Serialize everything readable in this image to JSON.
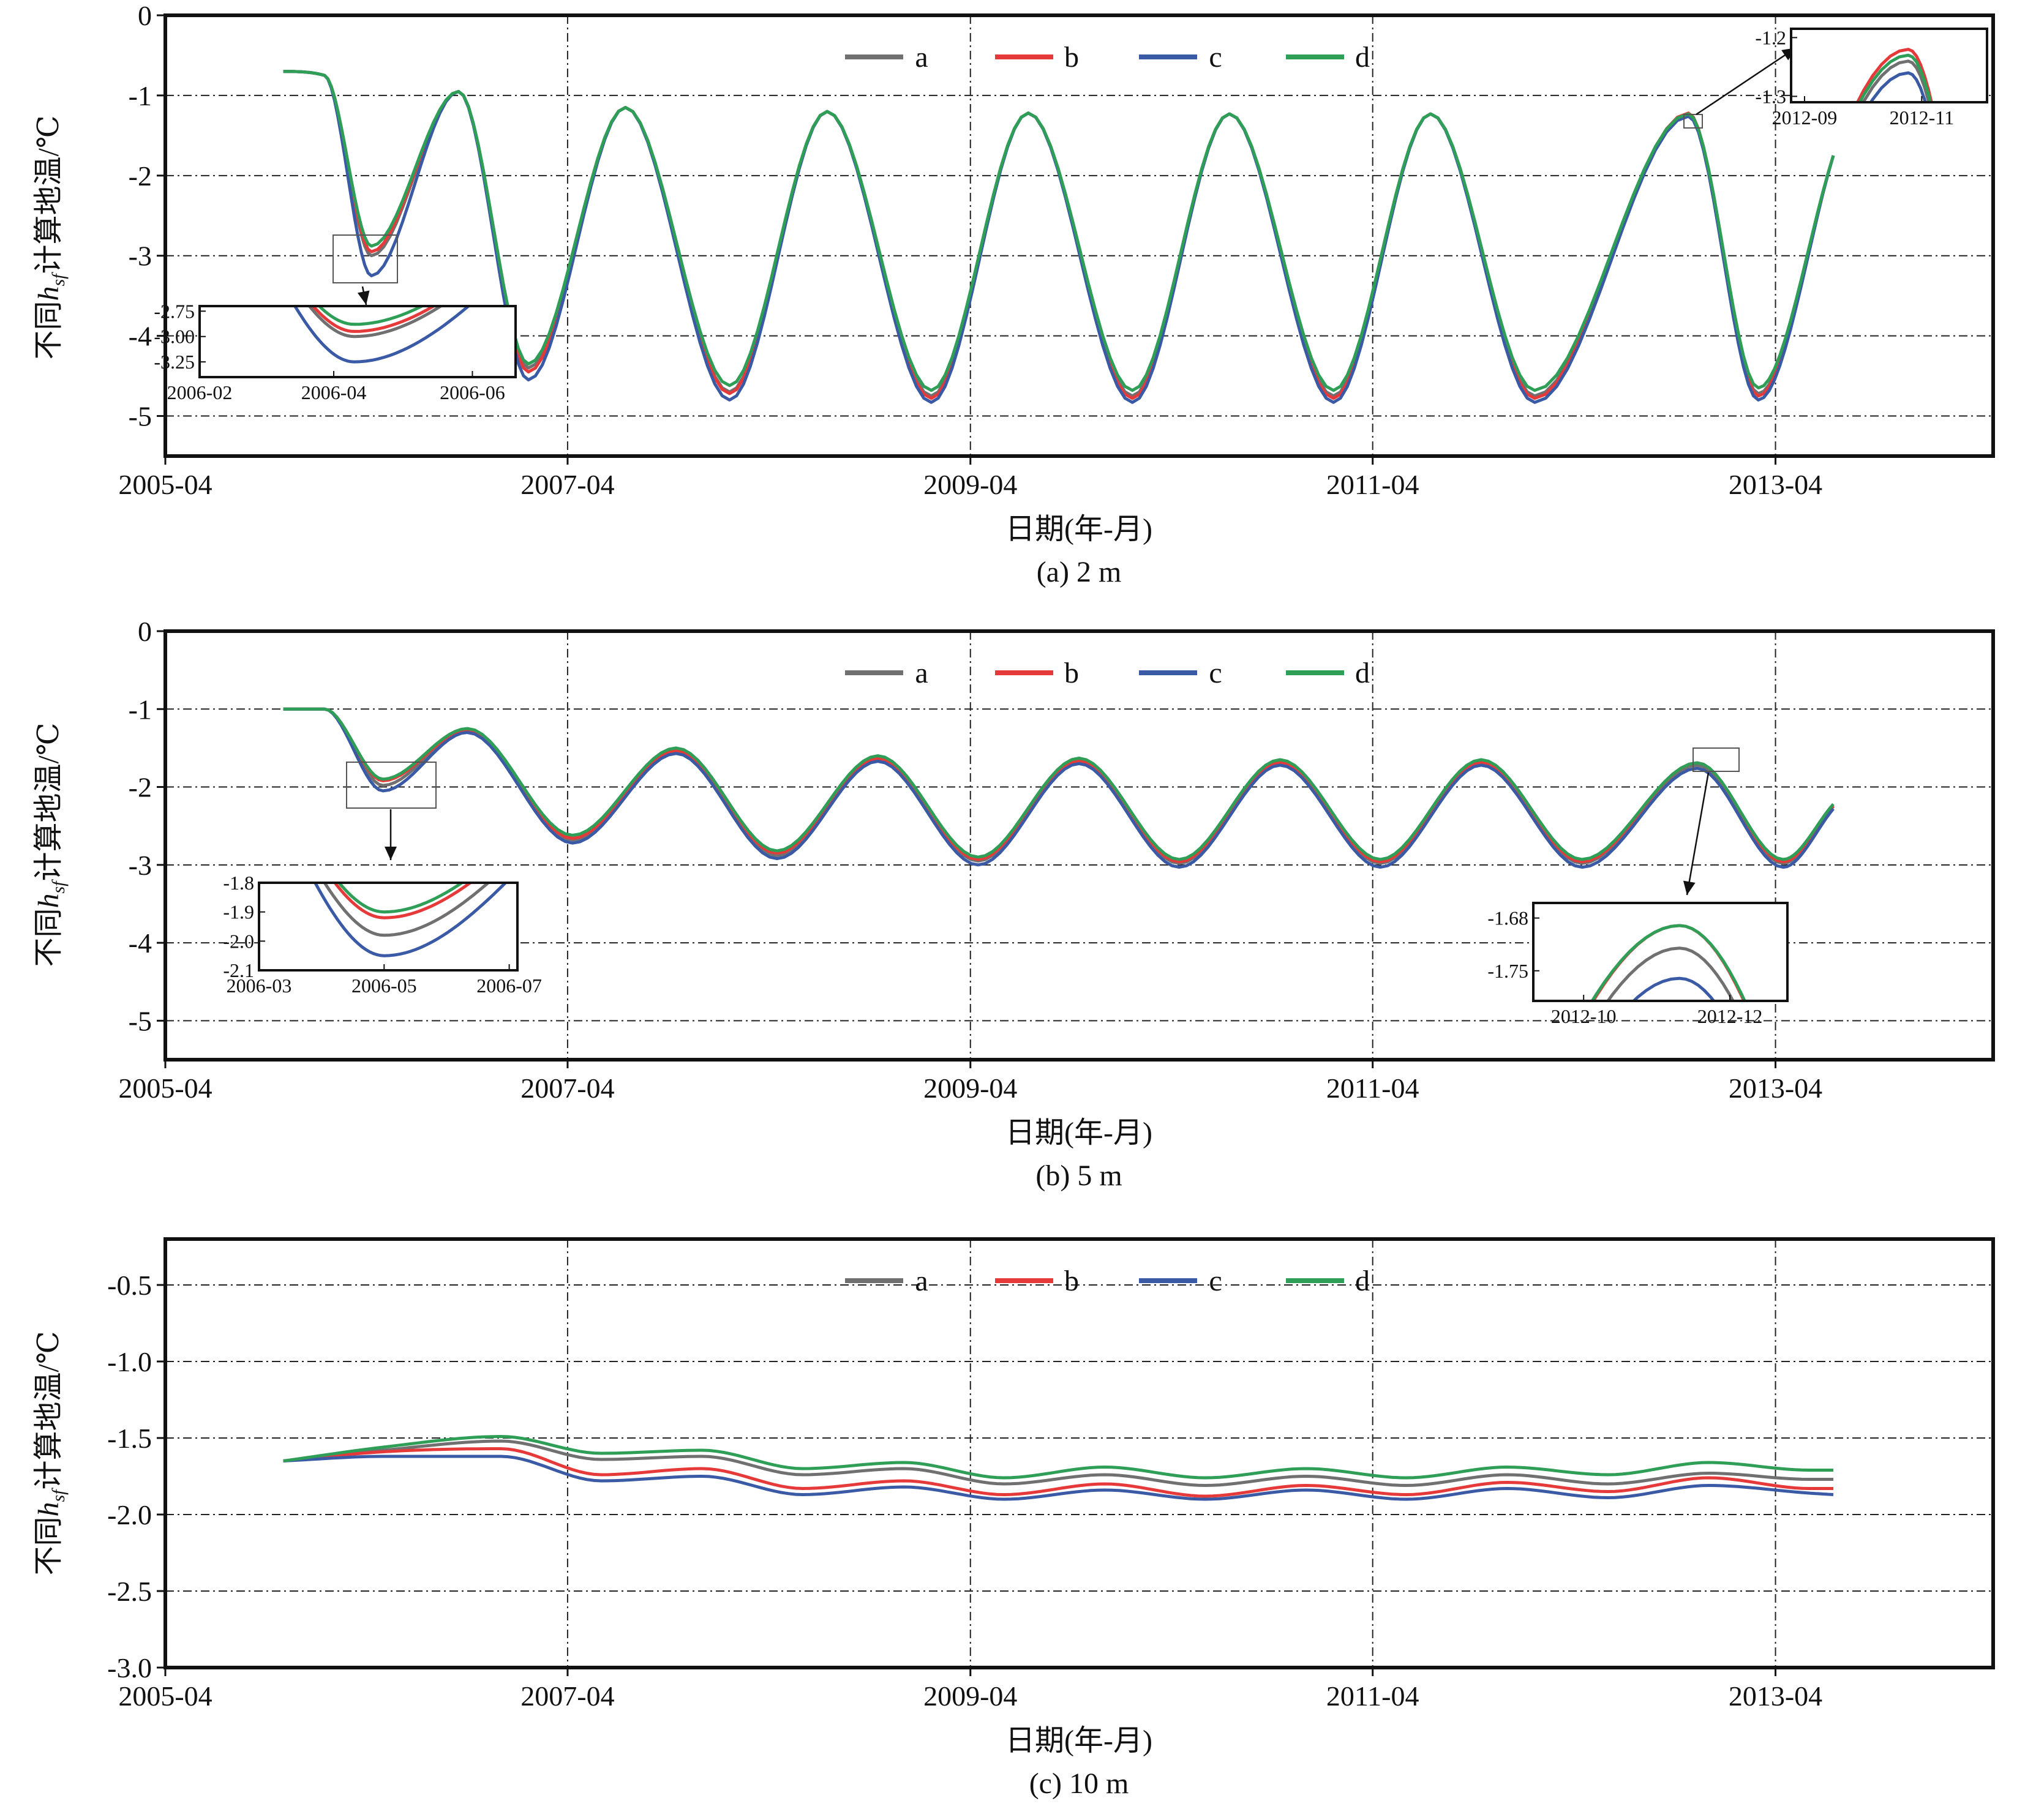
{
  "figure": {
    "legend_order": [
      "a",
      "b",
      "c",
      "d"
    ],
    "colors": {
      "a": "#707070",
      "b": "#e63a3a",
      "c": "#3a5aa6",
      "d": "#2f9e57"
    }
  },
  "chart_data": [
    {
      "type": "line",
      "caption": "(a) 2 m",
      "xlabel": "日期(年-月)",
      "ylabel": "不同hsf计算地温/℃",
      "ylabel_parts": {
        "pre": "不同",
        "h": "h",
        "sub": "sf",
        "post": "计算地温/℃"
      },
      "xlim": [
        "2005-04-01",
        "2014-05-01"
      ],
      "ylim": [
        -5.5,
        0
      ],
      "xticks": [
        "2005-04",
        "2007-04",
        "2009-04",
        "2011-04",
        "2013-04"
      ],
      "yticks": [
        0,
        -1,
        -2,
        -3,
        -4,
        -5
      ],
      "ytick_labels": [
        "0",
        "-1",
        "-2",
        "-3",
        "-4",
        "-5"
      ],
      "grid": true,
      "legend_position": "top-center",
      "series": [
        {
          "name": "a",
          "x": [
            "2005-11-01",
            "2006-01-15",
            "2006-04-10",
            "2006-09-15",
            "2007-01-20",
            "2007-07-15",
            "2008-01-20",
            "2008-07-15",
            "2009-01-20",
            "2009-07-15",
            "2010-01-20",
            "2010-07-15",
            "2011-01-20",
            "2011-07-15",
            "2012-01-20",
            "2012-10-25",
            "2013-03-01",
            "2013-07-15"
          ],
          "y": [
            -0.7,
            -0.75,
            -3.0,
            -0.95,
            -4.4,
            -1.15,
            -4.7,
            -1.2,
            -4.75,
            -1.22,
            -4.75,
            -1.23,
            -4.75,
            -1.23,
            -4.75,
            -1.24,
            -4.72,
            -1.75
          ]
        },
        {
          "name": "b",
          "x": [
            "2005-11-01",
            "2006-01-15",
            "2006-04-10",
            "2006-09-15",
            "2007-01-20",
            "2007-07-15",
            "2008-01-20",
            "2008-07-15",
            "2009-01-20",
            "2009-07-15",
            "2010-01-20",
            "2010-07-15",
            "2011-01-20",
            "2011-07-15",
            "2012-01-20",
            "2012-10-25",
            "2013-03-01",
            "2013-07-15"
          ],
          "y": [
            -0.7,
            -0.75,
            -2.95,
            -0.95,
            -4.45,
            -1.15,
            -4.72,
            -1.2,
            -4.78,
            -1.22,
            -4.78,
            -1.23,
            -4.78,
            -1.23,
            -4.78,
            -1.22,
            -4.75,
            -1.75
          ]
        },
        {
          "name": "c",
          "x": [
            "2005-11-01",
            "2006-01-15",
            "2006-04-10",
            "2006-09-15",
            "2007-01-20",
            "2007-07-15",
            "2008-01-20",
            "2008-07-15",
            "2009-01-20",
            "2009-07-15",
            "2010-01-20",
            "2010-07-15",
            "2011-01-20",
            "2011-07-15",
            "2012-01-20",
            "2012-10-25",
            "2013-03-01",
            "2013-07-15"
          ],
          "y": [
            -0.7,
            -0.75,
            -3.25,
            -0.95,
            -4.55,
            -1.15,
            -4.8,
            -1.2,
            -4.83,
            -1.22,
            -4.83,
            -1.23,
            -4.83,
            -1.23,
            -4.83,
            -1.26,
            -4.8,
            -1.75
          ]
        },
        {
          "name": "d",
          "x": [
            "2005-11-01",
            "2006-01-15",
            "2006-04-10",
            "2006-09-15",
            "2007-01-20",
            "2007-07-15",
            "2008-01-20",
            "2008-07-15",
            "2009-01-20",
            "2009-07-15",
            "2010-01-20",
            "2010-07-15",
            "2011-01-20",
            "2011-07-15",
            "2012-01-20",
            "2012-10-25",
            "2013-03-01",
            "2013-07-15"
          ],
          "y": [
            -0.7,
            -0.75,
            -2.88,
            -0.95,
            -4.35,
            -1.15,
            -4.62,
            -1.2,
            -4.68,
            -1.22,
            -4.68,
            -1.23,
            -4.68,
            -1.23,
            -4.68,
            -1.23,
            -4.65,
            -1.75
          ]
        }
      ],
      "insets": [
        {
          "xlim": [
            "2006-02-01",
            "2006-06-20"
          ],
          "ylim": [
            -3.4,
            -2.7
          ],
          "xticks": [
            "2006-02-01",
            "2006-04-01",
            "2006-06-01"
          ],
          "xtick_labels": [
            "2006-02",
            "2006-04",
            "2006-06"
          ],
          "yticks": [
            -2.75,
            -3.0,
            -3.25
          ],
          "ytick_labels": [
            "-2.75",
            "-3.00",
            "-3.25"
          ]
        },
        {
          "xlim": [
            "2012-08-25",
            "2012-12-05"
          ],
          "ylim": [
            -1.31,
            -1.185
          ],
          "xticks": [
            "2012-09-01",
            "2012-11-01"
          ],
          "xtick_labels": [
            "2012-09",
            "2012-11"
          ],
          "yticks": [
            -1.2,
            -1.3
          ],
          "ytick_labels": [
            "-1.2",
            "-1.3"
          ]
        }
      ]
    },
    {
      "type": "line",
      "caption": "(b) 5 m",
      "xlabel": "日期(年-月)",
      "ylabel": "不同hsf计算地温/℃",
      "ylabel_parts": {
        "pre": "不同",
        "h": "h",
        "sub": "sf",
        "post": "计算地温/℃"
      },
      "xlim": [
        "2005-04-01",
        "2014-05-01"
      ],
      "ylim": [
        -5.5,
        0
      ],
      "xticks": [
        "2005-04",
        "2007-04",
        "2009-04",
        "2011-04",
        "2013-04"
      ],
      "yticks": [
        0,
        -1,
        -2,
        -3,
        -4,
        -5
      ],
      "ytick_labels": [
        "0",
        "-1",
        "-2",
        "-3",
        "-4",
        "-5"
      ],
      "grid": true,
      "legend_position": "top-center",
      "series": [
        {
          "name": "a",
          "x": [
            "2005-11-01",
            "2006-01-15",
            "2006-05-01",
            "2006-10-01",
            "2007-04-10",
            "2007-10-15",
            "2008-04-15",
            "2008-10-15",
            "2009-04-15",
            "2009-10-15",
            "2010-04-15",
            "2010-10-15",
            "2011-04-15",
            "2011-10-15",
            "2012-04-15",
            "2012-11-10",
            "2013-04-15",
            "2013-07-15"
          ],
          "y": [
            -1.0,
            -1.0,
            -1.98,
            -1.28,
            -2.68,
            -1.55,
            -2.88,
            -1.65,
            -2.95,
            -1.68,
            -2.98,
            -1.7,
            -2.98,
            -1.7,
            -2.98,
            -1.72,
            -2.98,
            -2.25
          ]
        },
        {
          "name": "b",
          "x": [
            "2005-11-01",
            "2006-01-15",
            "2006-05-01",
            "2006-10-01",
            "2007-04-10",
            "2007-10-15",
            "2008-04-15",
            "2008-10-15",
            "2009-04-15",
            "2009-10-15",
            "2010-04-15",
            "2010-10-15",
            "2011-04-15",
            "2011-10-15",
            "2012-04-15",
            "2012-11-10",
            "2013-04-15",
            "2013-07-15"
          ],
          "y": [
            -1.0,
            -1.0,
            -1.92,
            -1.27,
            -2.66,
            -1.53,
            -2.85,
            -1.63,
            -2.93,
            -1.66,
            -2.96,
            -1.68,
            -2.96,
            -1.68,
            -2.96,
            -1.69,
            -2.96,
            -2.24
          ]
        },
        {
          "name": "c",
          "x": [
            "2005-11-01",
            "2006-01-15",
            "2006-05-01",
            "2006-10-01",
            "2007-04-10",
            "2007-10-15",
            "2008-04-15",
            "2008-10-15",
            "2009-04-15",
            "2009-10-15",
            "2010-04-15",
            "2010-10-15",
            "2011-04-15",
            "2011-10-15",
            "2012-04-15",
            "2012-11-10",
            "2013-04-15",
            "2013-07-15"
          ],
          "y": [
            -1.0,
            -1.0,
            -2.05,
            -1.3,
            -2.72,
            -1.57,
            -2.92,
            -1.67,
            -3.0,
            -1.7,
            -3.03,
            -1.72,
            -3.03,
            -1.72,
            -3.03,
            -1.76,
            -3.03,
            -2.28
          ]
        },
        {
          "name": "d",
          "x": [
            "2005-11-01",
            "2006-01-15",
            "2006-05-01",
            "2006-10-01",
            "2007-04-10",
            "2007-10-15",
            "2008-04-15",
            "2008-10-15",
            "2009-04-15",
            "2009-10-15",
            "2010-04-15",
            "2010-10-15",
            "2011-04-15",
            "2011-10-15",
            "2012-04-15",
            "2012-11-10",
            "2013-04-15",
            "2013-07-15"
          ],
          "y": [
            -1.0,
            -1.0,
            -1.9,
            -1.25,
            -2.62,
            -1.5,
            -2.82,
            -1.6,
            -2.9,
            -1.63,
            -2.93,
            -1.65,
            -2.93,
            -1.65,
            -2.93,
            -1.69,
            -2.93,
            -2.22
          ]
        }
      ],
      "insets": [
        {
          "xlim": [
            "2006-03-01",
            "2006-07-05"
          ],
          "ylim": [
            -2.1,
            -1.8
          ],
          "xticks": [
            "2006-03-01",
            "2006-05-01",
            "2006-07-01"
          ],
          "xtick_labels": [
            "2006-03",
            "2006-05",
            "2006-07"
          ],
          "yticks": [
            -1.8,
            -1.9,
            -2.0,
            -2.1
          ],
          "ytick_labels": [
            "-1.8",
            "-1.9",
            "-2.0",
            "-2.1"
          ]
        },
        {
          "xlim": [
            "2012-09-10",
            "2012-12-25"
          ],
          "ylim": [
            -1.79,
            -1.66
          ],
          "xticks": [
            "2012-10-01",
            "2012-12-01"
          ],
          "xtick_labels": [
            "2012-10",
            "2012-12"
          ],
          "yticks": [
            -1.68,
            -1.75
          ],
          "ytick_labels": [
            "-1.68",
            "-1.75"
          ]
        }
      ]
    },
    {
      "type": "line",
      "caption": "(c) 10 m",
      "xlabel": "日期(年-月)",
      "ylabel": "不同hsf计算地温/℃",
      "ylabel_parts": {
        "pre": "不同",
        "h": "h",
        "sub": "sf",
        "post": "计算地温/℃"
      },
      "xlim": [
        "2005-04-01",
        "2014-05-01"
      ],
      "ylim": [
        -3.0,
        -0.2
      ],
      "xticks": [
        "2005-04",
        "2007-04",
        "2009-04",
        "2011-04",
        "2013-04"
      ],
      "yticks": [
        -0.5,
        -1.0,
        -1.5,
        -2.0,
        -2.5,
        -3.0
      ],
      "ytick_labels": [
        "-0.5",
        "-1.0",
        "-1.5",
        "-2.0",
        "-2.5",
        "-3.0"
      ],
      "grid": true,
      "legend_position": "top-center",
      "series": [
        {
          "name": "a",
          "x": [
            "2005-11-01",
            "2006-05-01",
            "2006-12-01",
            "2007-06-01",
            "2007-12-01",
            "2008-06-01",
            "2008-12-01",
            "2009-06-01",
            "2009-12-01",
            "2010-06-01",
            "2010-12-01",
            "2011-06-01",
            "2011-12-01",
            "2012-06-01",
            "2012-12-01",
            "2013-06-01",
            "2013-07-15"
          ],
          "y": [
            -1.65,
            -1.58,
            -1.52,
            -1.64,
            -1.62,
            -1.74,
            -1.7,
            -1.8,
            -1.74,
            -1.81,
            -1.75,
            -1.81,
            -1.74,
            -1.8,
            -1.73,
            -1.77,
            -1.77
          ]
        },
        {
          "name": "b",
          "x": [
            "2005-11-01",
            "2006-05-01",
            "2006-12-01",
            "2007-06-01",
            "2007-12-01",
            "2008-06-01",
            "2008-12-01",
            "2009-06-01",
            "2009-12-01",
            "2010-06-01",
            "2010-12-01",
            "2011-06-01",
            "2011-12-01",
            "2012-06-01",
            "2012-12-01",
            "2013-06-01",
            "2013-07-15"
          ],
          "y": [
            -1.65,
            -1.59,
            -1.57,
            -1.74,
            -1.7,
            -1.83,
            -1.78,
            -1.87,
            -1.8,
            -1.88,
            -1.81,
            -1.87,
            -1.79,
            -1.85,
            -1.76,
            -1.83,
            -1.83
          ]
        },
        {
          "name": "c",
          "x": [
            "2005-11-01",
            "2006-05-01",
            "2006-12-01",
            "2007-06-01",
            "2007-12-01",
            "2008-06-01",
            "2008-12-01",
            "2009-06-01",
            "2009-12-01",
            "2010-06-01",
            "2010-12-01",
            "2011-06-01",
            "2011-12-01",
            "2012-06-01",
            "2012-12-01",
            "2013-06-01",
            "2013-07-15"
          ],
          "y": [
            -1.65,
            -1.62,
            -1.62,
            -1.78,
            -1.75,
            -1.87,
            -1.82,
            -1.9,
            -1.84,
            -1.9,
            -1.84,
            -1.9,
            -1.83,
            -1.89,
            -1.81,
            -1.86,
            -1.87
          ]
        },
        {
          "name": "d",
          "x": [
            "2005-11-01",
            "2006-05-01",
            "2006-12-01",
            "2007-06-01",
            "2007-12-01",
            "2008-06-01",
            "2008-12-01",
            "2009-06-01",
            "2009-12-01",
            "2010-06-01",
            "2010-12-01",
            "2011-06-01",
            "2011-12-01",
            "2012-06-01",
            "2012-12-01",
            "2013-06-01",
            "2013-07-15"
          ],
          "y": [
            -1.65,
            -1.56,
            -1.49,
            -1.6,
            -1.58,
            -1.7,
            -1.66,
            -1.76,
            -1.69,
            -1.76,
            -1.7,
            -1.76,
            -1.69,
            -1.74,
            -1.66,
            -1.71,
            -1.71
          ]
        }
      ],
      "insets": []
    }
  ]
}
